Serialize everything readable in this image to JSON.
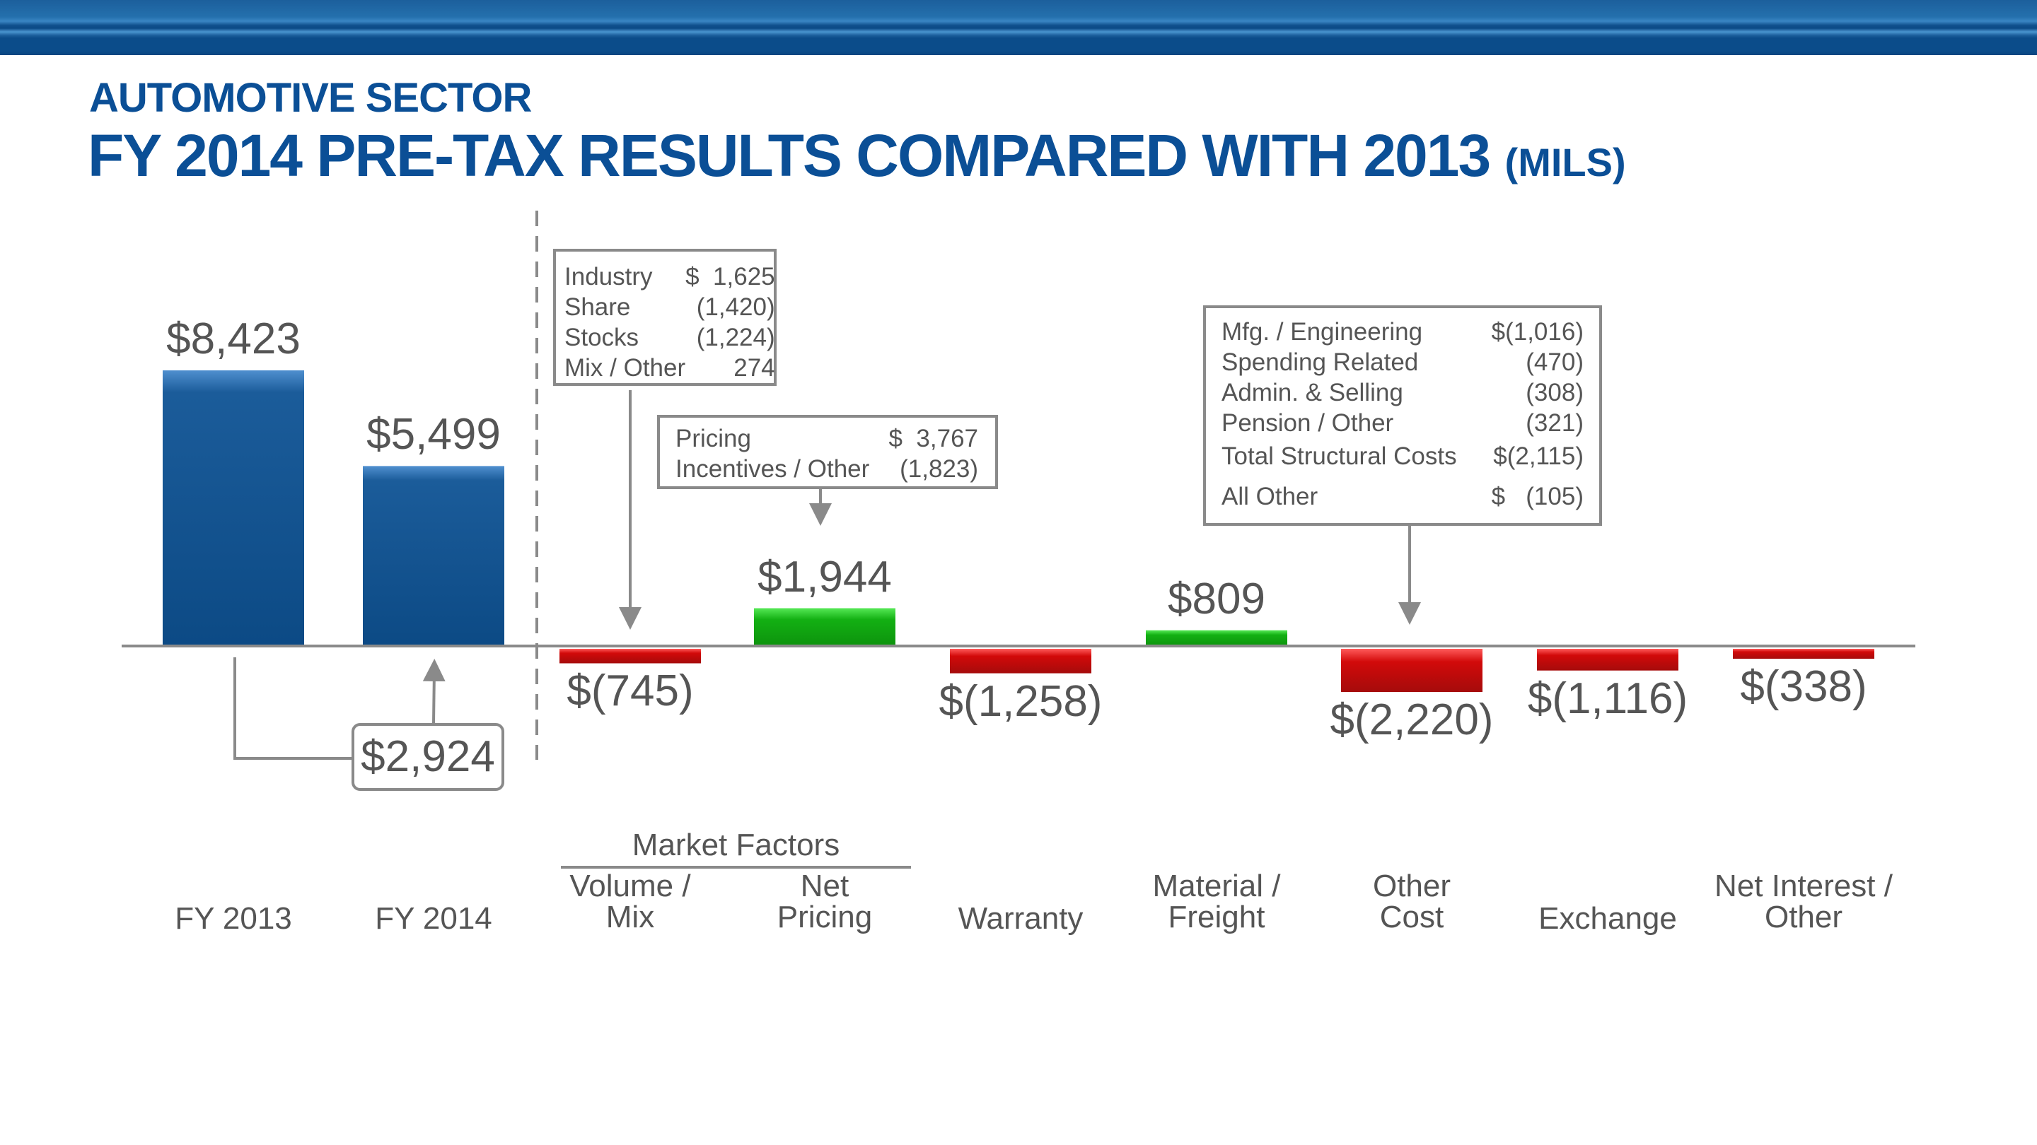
{
  "header": {
    "subtitle": "AUTOMOTIVE SECTOR",
    "title": "FY 2014 PRE-TAX RESULTS COMPARED WITH 2013",
    "unit": "(MILS)"
  },
  "colors": {
    "brand_blue": "#0b4f96",
    "total_bar": "#0d4a85",
    "positive_bar": "#12a312",
    "negative_bar": "#cc0a0a",
    "text_gray": "#555555",
    "line_gray": "#8a8a8a"
  },
  "callouts": {
    "volume_mix": [
      {
        "label": "Industry",
        "value": "$  1,625"
      },
      {
        "label": "Share",
        "value": "(1,420)"
      },
      {
        "label": "Stocks",
        "value": "(1,224)"
      },
      {
        "label": "Mix / Other",
        "value": "274"
      }
    ],
    "net_pricing": [
      {
        "label": "Pricing",
        "value": "$  3,767"
      },
      {
        "label": "Incentives / Other",
        "value": "(1,823)"
      }
    ],
    "other_cost": [
      {
        "label": "Mfg. / Engineering",
        "value": "$(1,016)"
      },
      {
        "label": "Spending Related",
        "value": "(470)"
      },
      {
        "label": "Admin. & Selling",
        "value": "(308)"
      },
      {
        "label": "Pension / Other",
        "value": "(321)"
      },
      {
        "label": "Total Structural Costs",
        "value": "$(2,115)"
      },
      {
        "label": "All Other",
        "value": "$   (105)"
      }
    ]
  },
  "difference_label": "$2,924",
  "group_label": "Market Factors",
  "chart_data": {
    "type": "bar",
    "subtype": "waterfall-variance",
    "title": "FY 2014 PRE-TAX RESULTS COMPARED WITH 2013 (MILS)",
    "xlabel": "",
    "ylabel": "",
    "grid": false,
    "categories": [
      "FY 2013",
      "FY 2014",
      "Volume / Mix",
      "Net Pricing",
      "Warranty",
      "Material / Freight",
      "Other Cost",
      "Exchange",
      "Net Interest / Other"
    ],
    "values": [
      8423,
      5499,
      -745,
      1944,
      -1258,
      809,
      -2220,
      -1116,
      -338
    ],
    "data_labels": [
      "$8,423",
      "$5,499",
      "$(745)",
      "$1,944",
      "$(1,258)",
      "$809",
      "$(2,220)",
      "$(1,116)",
      "$(338)"
    ],
    "kinds": [
      "total",
      "total",
      "change",
      "change",
      "change",
      "change",
      "change",
      "change",
      "change"
    ],
    "difference": {
      "from": "FY 2013",
      "to": "FY 2014",
      "value": -2924,
      "label": "$2,924"
    },
    "groups": [
      {
        "name": "Market Factors",
        "categories": [
          "Volume / Mix",
          "Net Pricing"
        ]
      }
    ]
  }
}
